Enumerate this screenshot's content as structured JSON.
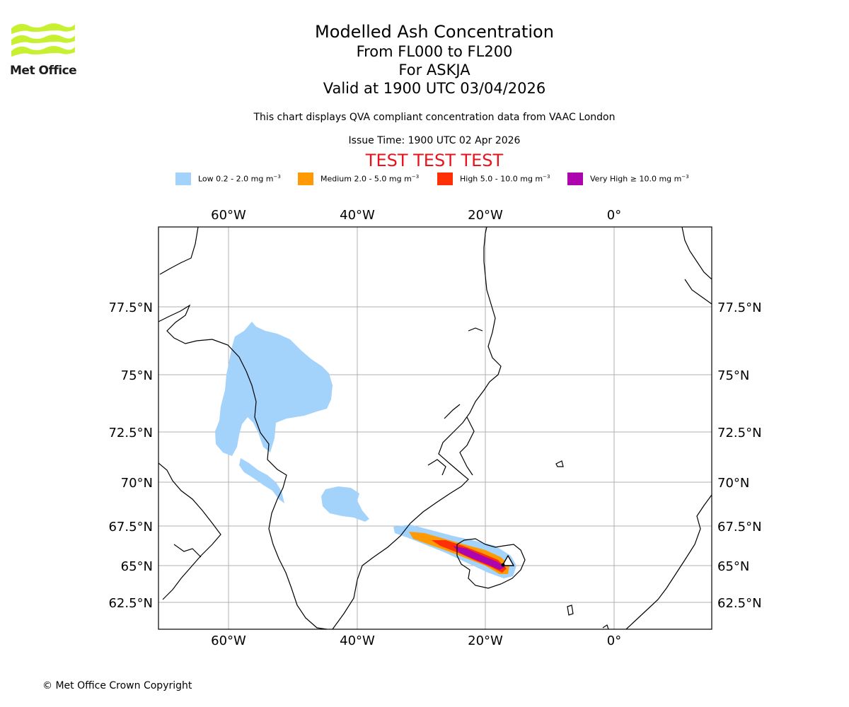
{
  "logo": {
    "text": "Met Office",
    "color": "#c8f032",
    "icon": "met-office-wave-logo-icon"
  },
  "titles": {
    "main": "Modelled Ash Concentration",
    "levels": "From FL000 to FL200",
    "volcano": "For ASKJA",
    "valid": "Valid at 1900 UTC 03/04/2026"
  },
  "description": "This chart displays QVA compliant concentration data from VAAC London",
  "issue_time": "Issue Time: 1900 UTC 02 Apr 2026",
  "test_banner": "TEST TEST TEST",
  "test_color": "#e8141d",
  "legend": [
    {
      "label": "Low 0.2 - 2.0 mg m",
      "exp": "−3",
      "color": "#a3d2fb"
    },
    {
      "label": "Medium 2.0 - 5.0 mg m",
      "exp": "−3",
      "color": "#ff9a05"
    },
    {
      "label": "High 5.0 - 10.0 mg m",
      "exp": "−3",
      "color": "#ff3005"
    },
    {
      "label": "Very High ≥ 10.0 mg m",
      "exp": "−3",
      "color": "#ad05ad"
    }
  ],
  "map": {
    "lon_ticks": [
      "60°W",
      "40°W",
      "20°W",
      "0°"
    ],
    "lat_ticks": [
      "77.5°N",
      "75°N",
      "72.5°N",
      "70°N",
      "67.5°N",
      "65°N",
      "62.5°N"
    ],
    "volcano_marker": "volcano-triangle-icon"
  },
  "copyright": "© Met Office Crown Copyright"
}
